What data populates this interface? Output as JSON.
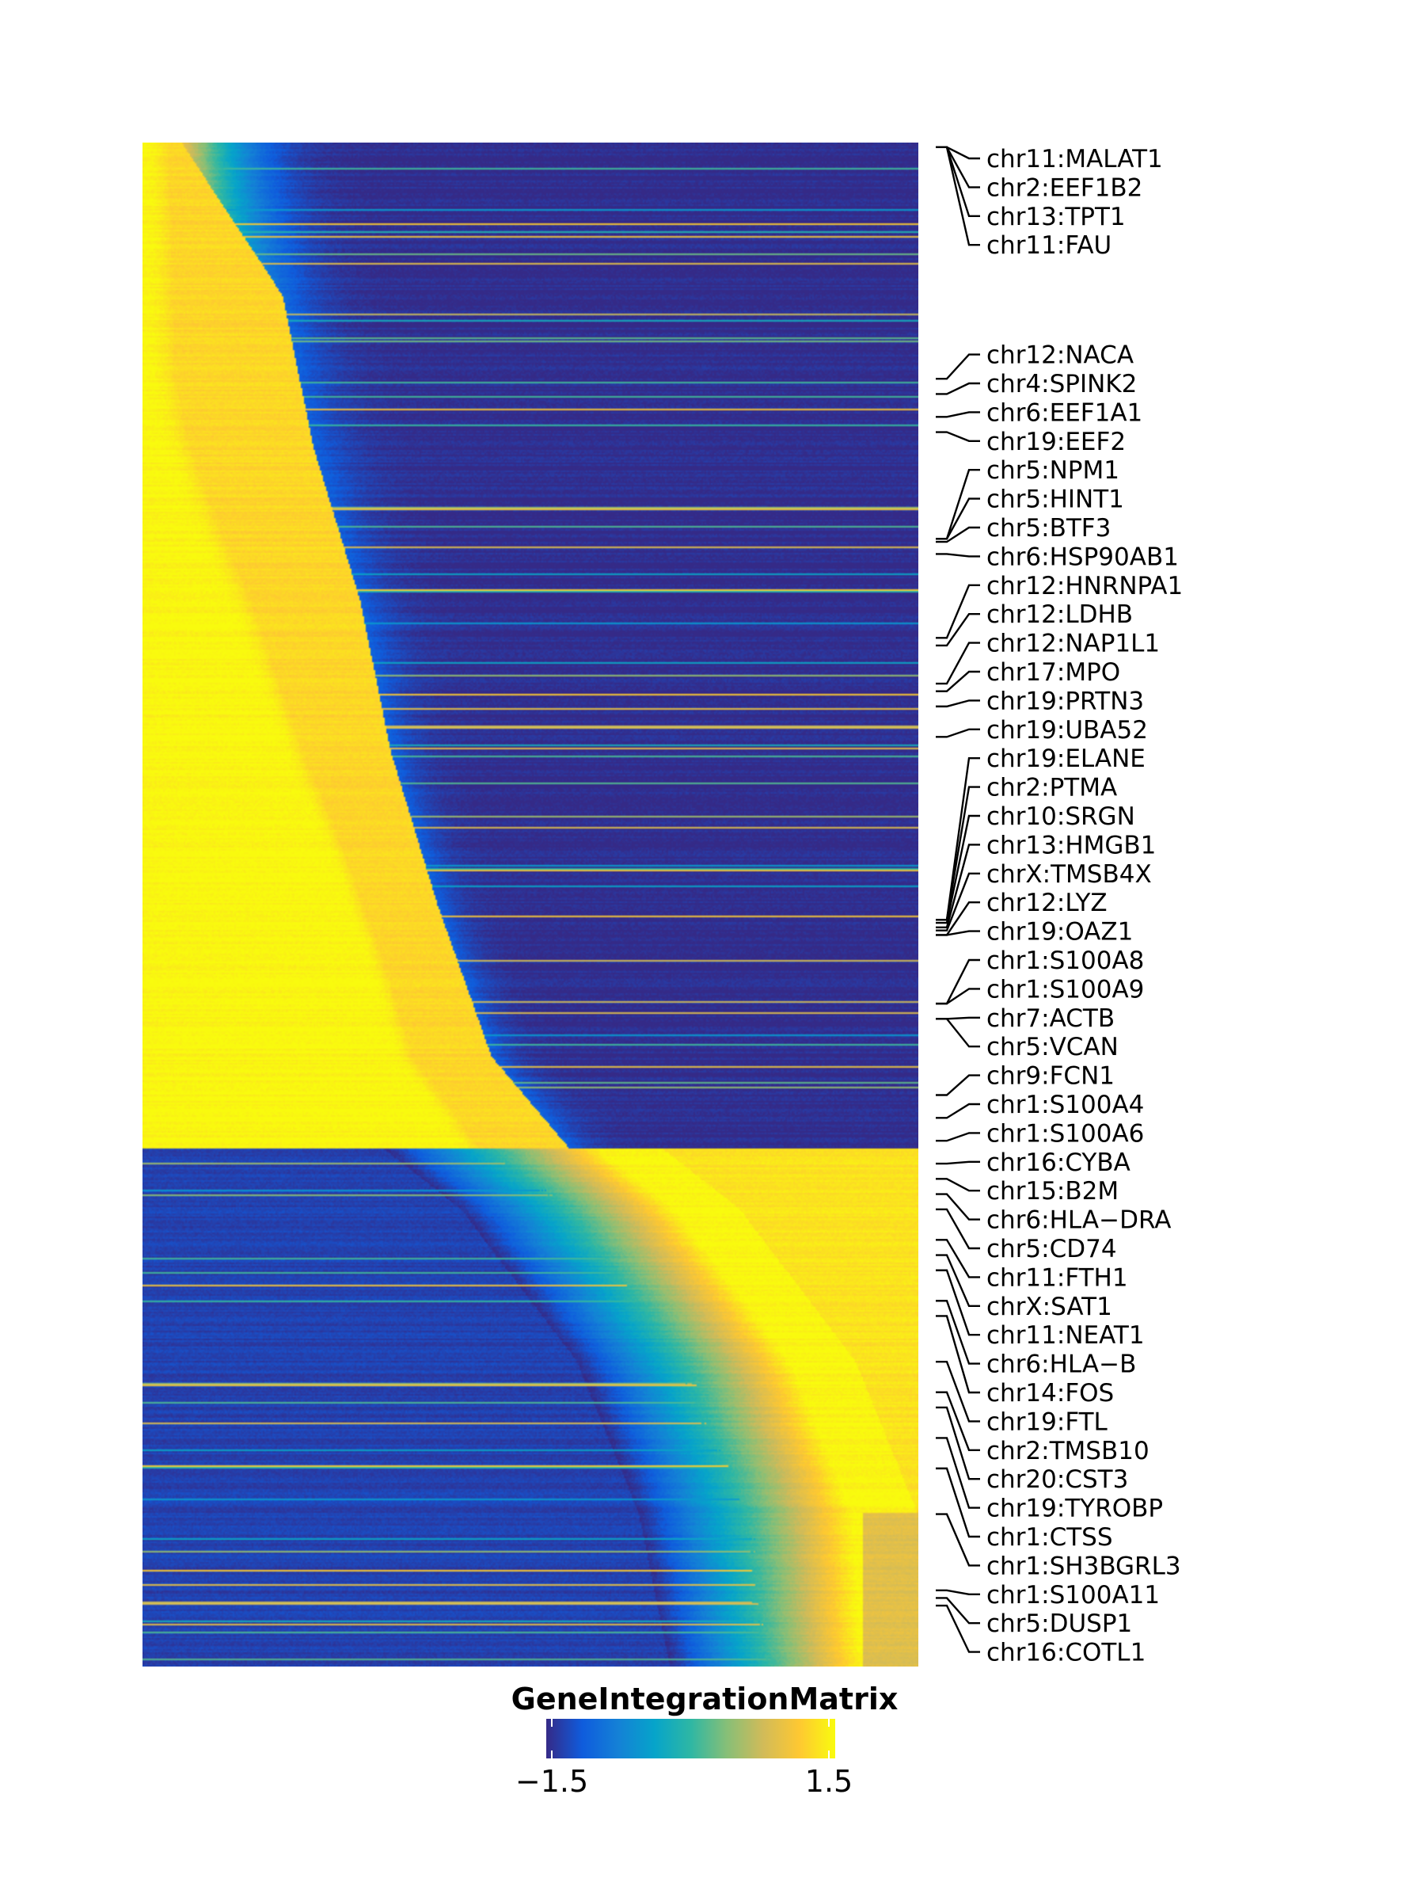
{
  "chart_data": {
    "type": "heatmap",
    "title": "",
    "description_rows": "genes ordered by peak pseudotime position; columns are pseudotime bins",
    "row_labels": [
      "chr11:MALAT1",
      "chr2:EEF1B2",
      "chr13:TPT1",
      "chr11:FAU",
      "chr12:NACA",
      "chr4:SPINK2",
      "chr6:EEF1A1",
      "chr19:EEF2",
      "chr5:NPM1",
      "chr5:HINT1",
      "chr5:BTF3",
      "chr6:HSP90AB1",
      "chr12:HNRNPA1",
      "chr12:LDHB",
      "chr12:NAP1L1",
      "chr17:MPO",
      "chr19:PRTN3",
      "chr19:UBA52",
      "chr19:ELANE",
      "chr2:PTMA",
      "chr10:SRGN",
      "chr13:HMGB1",
      "chrX:TMSB4X",
      "chr12:LYZ",
      "chr19:OAZ1",
      "chr1:S100A8",
      "chr1:S100A9",
      "chr7:ACTB",
      "chr5:VCAN",
      "chr9:FCN1",
      "chr1:S100A4",
      "chr1:S100A6",
      "chr16:CYBA",
      "chr15:B2M",
      "chr6:HLA−DRA",
      "chr5:CD74",
      "chr11:FTH1",
      "chrX:SAT1",
      "chr11:NEAT1",
      "chr6:HLA−B",
      "chr14:FOS",
      "chr19:FTL",
      "chr2:TMSB10",
      "chr20:CST3",
      "chr19:TYROBP",
      "chr1:CTSS",
      "chr1:SH3BGRL3",
      "chr1:S100A11",
      "chr5:DUSP1",
      "chr16:COTL1"
    ],
    "row_marks": [
      0.003,
      0.003,
      0.003,
      0.003,
      0.155,
      0.165,
      0.18,
      0.19,
      0.26,
      0.26,
      0.262,
      0.27,
      0.325,
      0.33,
      0.355,
      0.36,
      0.37,
      0.39,
      0.51,
      0.51,
      0.512,
      0.515,
      0.517,
      0.52,
      0.52,
      0.565,
      0.565,
      0.575,
      0.575,
      0.625,
      0.64,
      0.655,
      0.67,
      0.68,
      0.69,
      0.7,
      0.72,
      0.73,
      0.74,
      0.76,
      0.77,
      0.8,
      0.82,
      0.83,
      0.85,
      0.87,
      0.9,
      0.95,
      0.955,
      0.96
    ],
    "color_scale": {
      "title": "GeneIntegrationMatrix",
      "min": -1.5,
      "max": 1.5,
      "tick_labels": [
        "−1.5",
        "1.5"
      ],
      "colors": [
        "#352A87",
        "#0F5CDD",
        "#1481D6",
        "#06A4CA",
        "#2EB7A4",
        "#87BF77",
        "#D1BB59",
        "#FEC832",
        "#F9FB0E"
      ]
    },
    "peak_curve": {
      "row_fraction": [
        0.0,
        0.1,
        0.2,
        0.3,
        0.4,
        0.5,
        0.6,
        0.63,
        0.66,
        0.7,
        0.8,
        0.9,
        1.0
      ],
      "column_fraction": [
        0.05,
        0.18,
        0.22,
        0.28,
        0.32,
        0.38,
        0.45,
        0.5,
        0.55,
        0.65,
        0.8,
        0.88,
        0.92
      ]
    }
  }
}
